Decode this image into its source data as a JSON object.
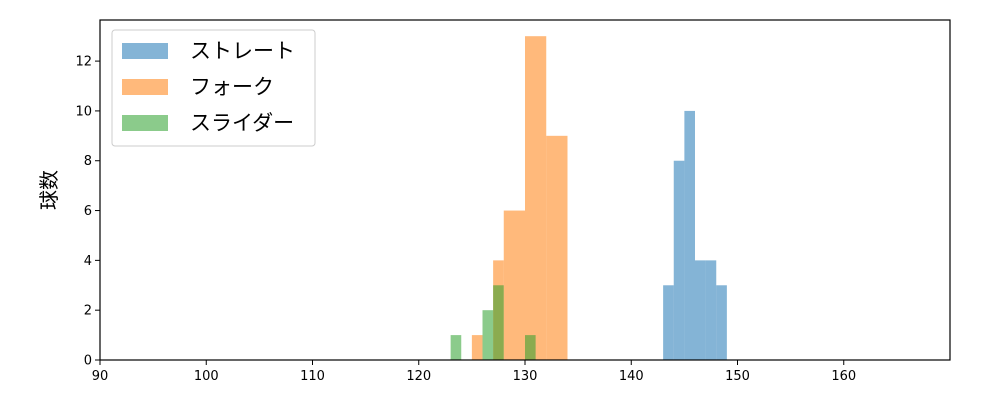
{
  "chart_data": {
    "type": "bar",
    "subtype": "histogram",
    "title": "",
    "xlabel": "",
    "ylabel": "球数",
    "xlim": [
      90,
      170
    ],
    "ylim": [
      0,
      13.65
    ],
    "xticks": [
      90,
      100,
      110,
      120,
      130,
      140,
      150,
      160
    ],
    "yticks": [
      0,
      2,
      4,
      6,
      8,
      10,
      12
    ],
    "grid": false,
    "legend_position": "top-left",
    "bar_alpha": 0.55,
    "series": [
      {
        "name": "ストレート",
        "color": "#1f77b4",
        "bins": [
          {
            "x0": 143.0,
            "x1": 144.0,
            "count": 3
          },
          {
            "x0": 144.0,
            "x1": 145.0,
            "count": 8
          },
          {
            "x0": 145.0,
            "x1": 146.0,
            "count": 10
          },
          {
            "x0": 146.0,
            "x1": 147.0,
            "count": 4
          },
          {
            "x0": 147.0,
            "x1": 148.0,
            "count": 4
          },
          {
            "x0": 148.0,
            "x1": 149.0,
            "count": 3
          }
        ]
      },
      {
        "name": "フォーク",
        "color": "#ff7f0e",
        "bins": [
          {
            "x0": 125.0,
            "x1": 126.0,
            "count": 1
          },
          {
            "x0": 126.0,
            "x1": 127.0,
            "count": 0
          },
          {
            "x0": 127.0,
            "x1": 128.0,
            "count": 4
          },
          {
            "x0": 128.0,
            "x1": 130.0,
            "count": 6
          },
          {
            "x0": 130.0,
            "x1": 132.0,
            "count": 13
          },
          {
            "x0": 132.0,
            "x1": 134.0,
            "count": 9
          }
        ]
      },
      {
        "name": "スライダー",
        "color": "#2ca02c",
        "bins": [
          {
            "x0": 123.0,
            "x1": 124.0,
            "count": 1
          },
          {
            "x0": 126.0,
            "x1": 127.0,
            "count": 2
          },
          {
            "x0": 127.0,
            "x1": 128.0,
            "count": 3
          },
          {
            "x0": 130.0,
            "x1": 131.0,
            "count": 1
          }
        ]
      }
    ]
  }
}
